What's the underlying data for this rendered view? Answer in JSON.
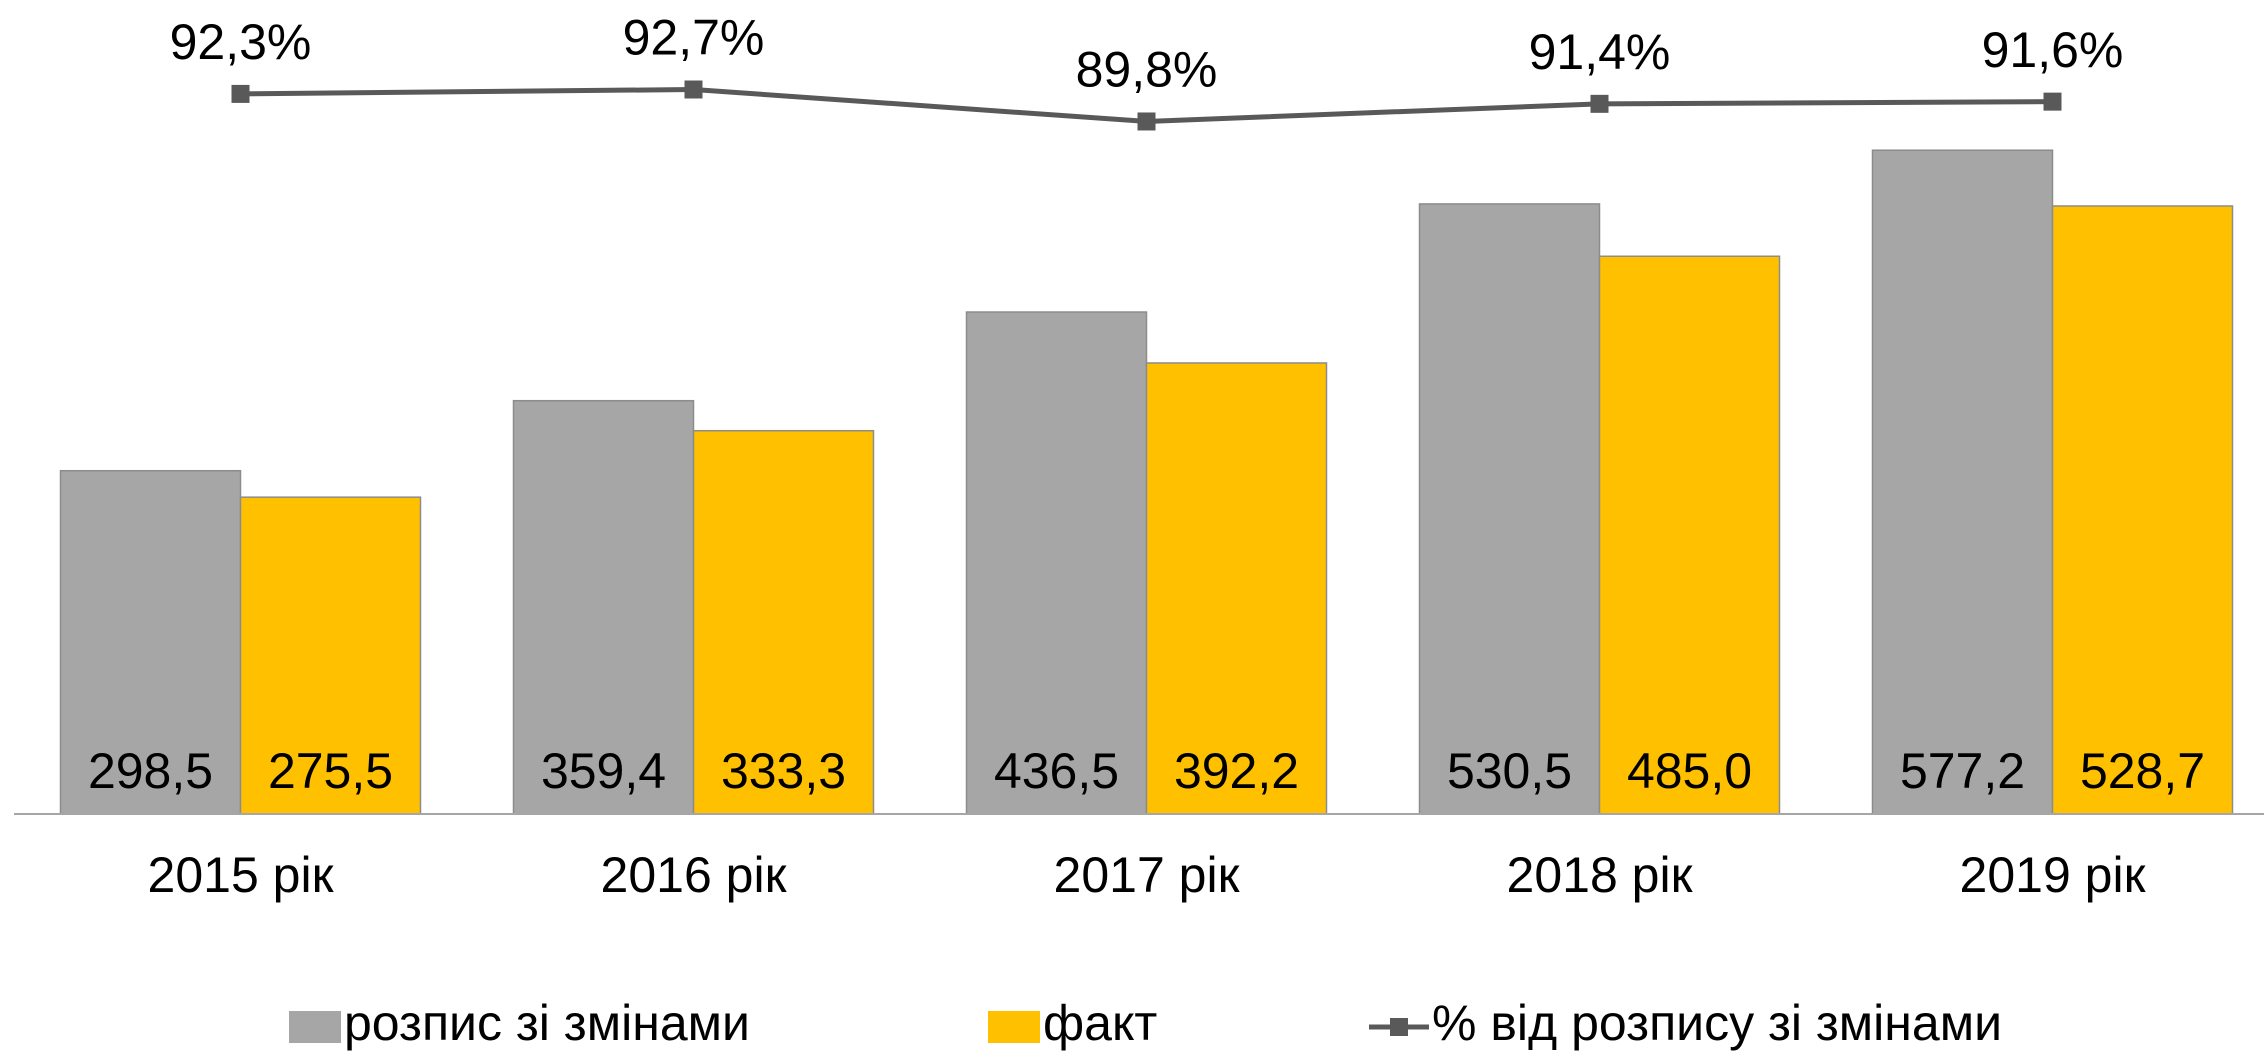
{
  "chart_data": {
    "type": "bar",
    "categories": [
      "2015 рік",
      "2016 рік",
      "2017 рік",
      "2018 рік",
      "2019 рік"
    ],
    "series": [
      {
        "name": "розпис зі змінами",
        "color": "#a6a6a6",
        "values": [
          298.5,
          359.4,
          436.5,
          530.5,
          577.2
        ],
        "value_labels": [
          "298,5",
          "359,4",
          "436,5",
          "530,5",
          "577,2"
        ]
      },
      {
        "name": "факт",
        "color": "#ffc000",
        "values": [
          275.5,
          333.3,
          392.2,
          485.0,
          528.7
        ],
        "value_labels": [
          "275,5",
          "333,3",
          "392,2",
          "485,0",
          "528,7"
        ]
      },
      {
        "name": "% від розпису зі змінами",
        "color": "#595959",
        "type": "line",
        "axis": "y2",
        "values": [
          92.3,
          92.7,
          89.8,
          91.4,
          91.6
        ],
        "value_labels": [
          "92,3%",
          "92,7%",
          "89,8%",
          "91,4%",
          "91,6%"
        ]
      }
    ],
    "ylim": [
      0,
      700
    ],
    "y2lim": [
      27,
      100
    ],
    "legend": "bottom"
  }
}
